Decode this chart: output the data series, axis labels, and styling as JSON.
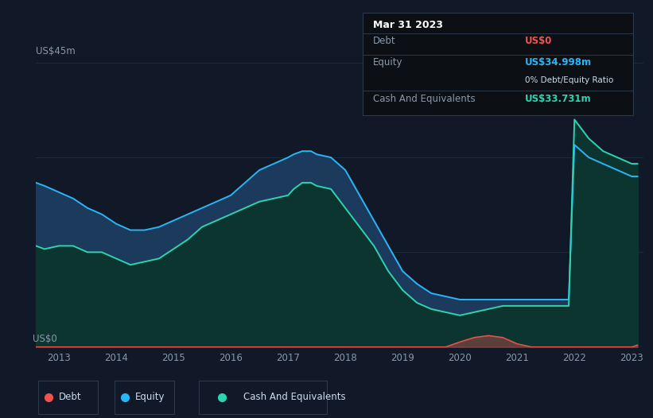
{
  "bg_color": "#111827",
  "plot_bg_color": "#111827",
  "title_label": "US$45m",
  "zero_label": "US$0",
  "x_ticks": [
    2013,
    2014,
    2015,
    2016,
    2017,
    2018,
    2019,
    2020,
    2021,
    2022,
    2023
  ],
  "tooltip": {
    "date": "Mar 31 2023",
    "debt_label": "Debt",
    "debt_value": "US$0",
    "equity_label": "Equity",
    "equity_value": "US$34.998m",
    "ratio": "0% Debt/Equity Ratio",
    "cash_label": "Cash And Equivalents",
    "cash_value": "US$33.731m"
  },
  "equity_color": "#29b6f6",
  "equity_fill": "#1b3a5c",
  "cash_color": "#2dd4b0",
  "cash_fill": "#0d3d35",
  "debt_color": "#ef5350",
  "grid_color": "#1e2d3d",
  "years": [
    2012.6,
    2012.75,
    2013.0,
    2013.25,
    2013.5,
    2013.75,
    2014.0,
    2014.25,
    2014.5,
    2014.75,
    2015.0,
    2015.25,
    2015.5,
    2015.75,
    2016.0,
    2016.25,
    2016.5,
    2016.75,
    2017.0,
    2017.1,
    2017.25,
    2017.4,
    2017.5,
    2017.75,
    2018.0,
    2018.25,
    2018.5,
    2018.75,
    2019.0,
    2019.25,
    2019.5,
    2019.75,
    2020.0,
    2020.25,
    2020.5,
    2020.75,
    2021.0,
    2021.25,
    2021.5,
    2021.75,
    2021.9,
    2022.0,
    2022.25,
    2022.5,
    2022.75,
    2023.0,
    2023.1
  ],
  "equity": [
    26,
    25.5,
    24.5,
    23.5,
    22,
    21,
    19.5,
    18.5,
    18.5,
    19,
    20,
    21,
    22,
    23,
    24,
    26,
    28,
    29,
    30,
    30.5,
    31,
    31,
    30.5,
    30,
    28,
    24,
    20,
    16,
    12,
    10,
    8.5,
    8,
    7.5,
    7.5,
    7.5,
    7.5,
    7.5,
    7.5,
    7.5,
    7.5,
    7.5,
    32,
    30,
    29,
    28,
    27,
    27
  ],
  "cash": [
    16,
    15.5,
    16,
    16,
    15,
    15,
    14,
    13,
    13.5,
    14,
    15.5,
    17,
    19,
    20,
    21,
    22,
    23,
    23.5,
    24,
    25,
    26,
    26,
    25.5,
    25,
    22,
    19,
    16,
    12,
    9,
    7,
    6,
    5.5,
    5,
    5.5,
    6,
    6.5,
    6.5,
    6.5,
    6.5,
    6.5,
    6.5,
    36,
    33,
    31,
    30,
    29,
    29
  ],
  "debt": [
    0,
    0,
    0,
    0,
    0,
    0,
    0,
    0,
    0,
    0,
    0,
    0,
    0,
    0,
    0,
    0,
    0,
    0,
    0,
    0,
    0,
    0,
    0,
    0,
    0,
    0,
    0,
    0,
    0,
    0,
    0,
    0,
    0.8,
    1.5,
    1.8,
    1.5,
    0.5,
    0,
    0,
    0,
    0,
    0,
    0,
    0,
    0,
    0,
    0.3
  ],
  "ylim": [
    0,
    45
  ],
  "xlim": [
    2012.6,
    2023.2
  ]
}
